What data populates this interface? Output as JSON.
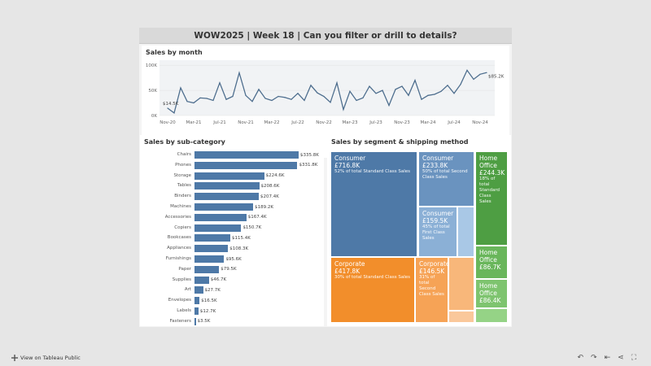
{
  "dashboard": {
    "title": "WOW2025 | Week 18 | Can you filter or drill to details?"
  },
  "sales_by_month": {
    "title": "Sales by month",
    "y_ticks": [
      "100K",
      "50K",
      "0K"
    ],
    "x_ticks": [
      "Nov-20",
      "Mar-21",
      "Jul-21",
      "Nov-21",
      "Mar-22",
      "Jul-22",
      "Nov-22",
      "Mar-23",
      "Jul-23",
      "Nov-23",
      "Mar-24",
      "Jul-24",
      "Nov-24"
    ],
    "start_label": "$14.5K",
    "end_label": "$85.2K",
    "line_color": "#4e6e8e"
  },
  "sub_category": {
    "title": "Sales by sub-category",
    "bar_color": "#4e79a7"
  },
  "segment_shipping": {
    "title": "Sales by segment & shipping method",
    "cells": [
      {
        "name": "Consumer",
        "value": "£716.8K",
        "pct": "52%",
        "pct_text": "of total Standard Class Sales",
        "color": "#4e79a7"
      },
      {
        "name": "Consumer",
        "value": "£233.8K",
        "pct": "50%",
        "pct_text": "of total Second Class Sales",
        "color": "#6a93bf"
      },
      {
        "name": "Consumer",
        "value": "£159.5K",
        "pct": "45%",
        "pct_text": "of total First Class Sales",
        "color": "#8bb0d6"
      },
      {
        "name": "",
        "value": "",
        "pct": "",
        "pct_text": "",
        "color": "#a9c8e6"
      },
      {
        "name": "Home Office",
        "value": "£244.3K",
        "pct": "18%",
        "pct_text": "of total Standard Class Sales",
        "color": "#4e9e43"
      },
      {
        "name": "Home Office",
        "value": "£86.7K",
        "pct": "",
        "pct_text": "",
        "color": "#69b65b"
      },
      {
        "name": "Home Office",
        "value": "£86.4K",
        "pct": "",
        "pct_text": "",
        "color": "#7ec46f"
      },
      {
        "name": "",
        "value": "",
        "pct": "",
        "pct_text": "",
        "color": "#95d386"
      },
      {
        "name": "Corporate",
        "value": "£417.8K",
        "pct": "30%",
        "pct_text": "of total Standard Class Sales",
        "color": "#f28e2b"
      },
      {
        "name": "Corporate",
        "value": "£146.5K",
        "pct": "31%",
        "pct_text": "of total Second Class Sales",
        "color": "#f6a356"
      },
      {
        "name": "",
        "value": "",
        "pct": "",
        "pct_text": "",
        "color": "#f8b77a"
      },
      {
        "name": "",
        "value": "",
        "pct": "",
        "pct_text": "",
        "color": "#fac89b"
      }
    ]
  },
  "footer": {
    "link": "View on Tableau Public",
    "icons": [
      "undo-icon",
      "redo-icon",
      "revert-icon",
      "share-icon",
      "fullscreen-icon"
    ]
  },
  "chart_data": [
    {
      "type": "line",
      "title": "Sales by month",
      "x": [
        "Nov-20",
        "Dec-20",
        "Jan-21",
        "Feb-21",
        "Mar-21",
        "Apr-21",
        "May-21",
        "Jun-21",
        "Jul-21",
        "Aug-21",
        "Sep-21",
        "Oct-21",
        "Nov-21",
        "Dec-21",
        "Jan-22",
        "Feb-22",
        "Mar-22",
        "Apr-22",
        "May-22",
        "Jun-22",
        "Jul-22",
        "Aug-22",
        "Sep-22",
        "Oct-22",
        "Nov-22",
        "Dec-22",
        "Jan-23",
        "Feb-23",
        "Mar-23",
        "Apr-23",
        "May-23",
        "Jun-23",
        "Jul-23",
        "Aug-23",
        "Sep-23",
        "Oct-23",
        "Nov-23",
        "Dec-23",
        "Jan-24",
        "Feb-24",
        "Mar-24",
        "Apr-24",
        "May-24",
        "Jun-24",
        "Jul-24",
        "Aug-24",
        "Sep-24",
        "Oct-24",
        "Nov-24",
        "Dec-24"
      ],
      "values": [
        14.5,
        5,
        55,
        28,
        25,
        35,
        34,
        30,
        65,
        32,
        38,
        85,
        40,
        28,
        52,
        34,
        30,
        38,
        36,
        32,
        44,
        30,
        60,
        45,
        38,
        26,
        65,
        12,
        48,
        30,
        35,
        58,
        44,
        50,
        20,
        52,
        58,
        40,
        70,
        32,
        40,
        42,
        48,
        60,
        44,
        62,
        90,
        72,
        82,
        85.2
      ],
      "ylim": [
        0,
        110
      ],
      "y_ticks": [
        0,
        50,
        100
      ]
    },
    {
      "type": "bar",
      "title": "Sales by sub-category",
      "categories": [
        "Chairs",
        "Phones",
        "Storage",
        "Tables",
        "Binders",
        "Machines",
        "Accessories",
        "Copiers",
        "Bookcases",
        "Appliances",
        "Furnishings",
        "Paper",
        "Supplies",
        "Art",
        "Envelopes",
        "Labels",
        "Fasteners"
      ],
      "labels": [
        "$335.8K",
        "$331.8K",
        "$224.6K",
        "$208.6K",
        "$207.4K",
        "$189.2K",
        "$167.4K",
        "$150.7K",
        "$115.4K",
        "$108.3K",
        "$95.6K",
        "$79.5K",
        "$46.7K",
        "$27.7K",
        "$16.5K",
        "$12.7K",
        "$3.5K"
      ],
      "values": [
        335.8,
        331.8,
        224.6,
        208.6,
        207.4,
        189.2,
        167.4,
        150.7,
        115.4,
        108.3,
        95.6,
        79.5,
        46.7,
        27.7,
        16.5,
        12.7,
        3.5
      ]
    }
  ]
}
